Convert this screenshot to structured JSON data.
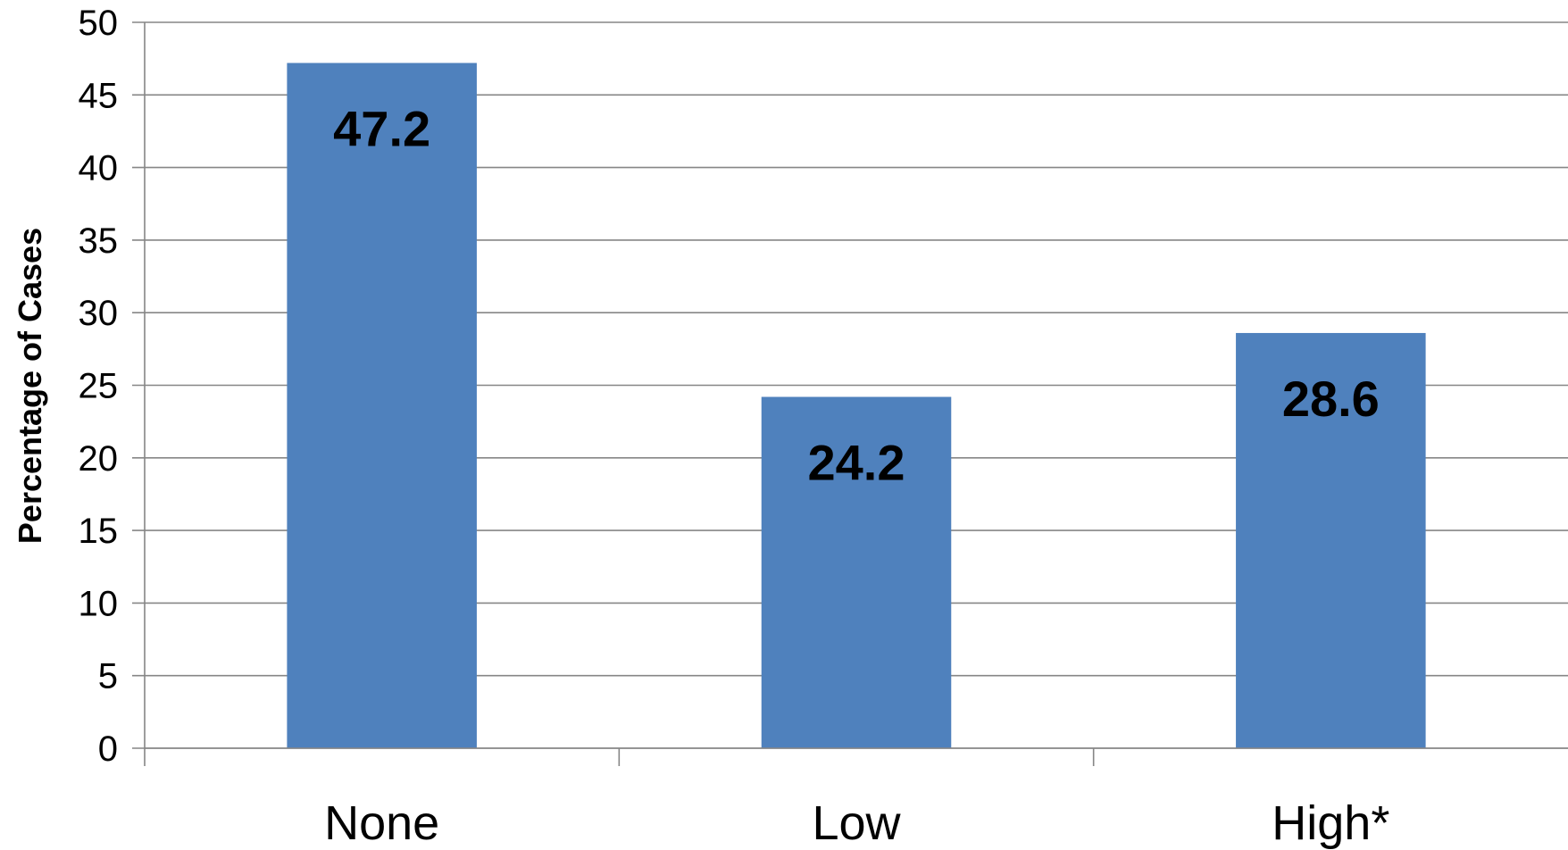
{
  "chart_data": {
    "type": "bar",
    "categories": [
      "None",
      "Low",
      "High*"
    ],
    "values": [
      47.2,
      24.2,
      28.6
    ],
    "data_labels": [
      "47.2",
      "24.2",
      "28.6"
    ],
    "title": "",
    "xlabel": "",
    "ylabel": "Percentage of Cases",
    "ylim": [
      0,
      50
    ],
    "yticks": [
      0,
      5,
      10,
      15,
      20,
      25,
      30,
      35,
      40,
      45,
      50
    ],
    "grid": true,
    "legend": "none",
    "colors": {
      "bar": "#4F81BD",
      "grid": "#868686",
      "axis": "#868686"
    }
  }
}
